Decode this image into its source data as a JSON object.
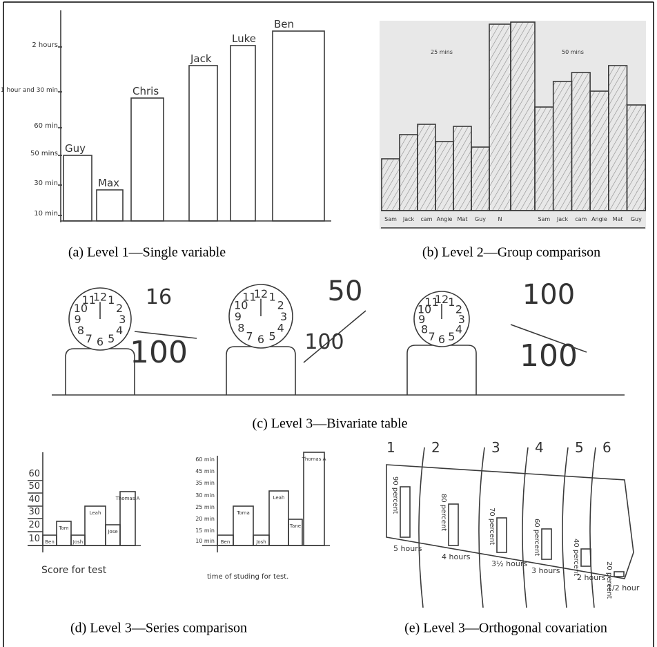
{
  "panels": [
    {
      "caption": "(a) Level 1—Single variable",
      "y_labels": [
        "2 hours",
        "1 hour and 30 min",
        "60 min",
        "50 mins",
        "30 min",
        "10 min"
      ],
      "bar_labels": [
        "Guy",
        "Max",
        "Chris",
        "Jack",
        "Luke",
        "Ben"
      ]
    },
    {
      "caption": "(b) Level 2—Group comparison",
      "group_labels": [
        "25 mins",
        "50 mins"
      ],
      "bar_labels": [
        "Sam",
        "Jack",
        "cam",
        "Angie",
        "Mat",
        "Guy",
        "N",
        "Sam",
        "Jack",
        "cam",
        "Angie",
        "Mat",
        "Guy"
      ]
    },
    {
      "caption": "(c) Level 3—Bivariate table",
      "clock_numbers": [
        "12",
        "1",
        "2",
        "3",
        "4",
        "5",
        "6",
        "7",
        "8",
        "9",
        "10",
        "11"
      ],
      "fractions": [
        {
          "numerator": "16",
          "denominator": "100"
        },
        {
          "numerator": "50",
          "denominator": "100"
        },
        {
          "numerator": "100",
          "denominator": "100"
        }
      ]
    },
    {
      "caption": "(d) Level 3—Series comparison",
      "charts": [
        {
          "y_labels": [
            "60",
            "50",
            "40",
            "30",
            "20",
            "10"
          ],
          "bar_labels": [
            "Ben",
            "Tom",
            "Josh",
            "Leah",
            "Jose",
            "Thomas A"
          ],
          "x_label": "Score for test"
        },
        {
          "y_labels": [
            "60 min",
            "45 min",
            "35 min",
            "30 min",
            "25 min",
            "20 min",
            "15 min",
            "10 min"
          ],
          "bar_labels": [
            "Ben",
            "Toma",
            "Josh",
            "Leah",
            "Tane",
            "Thomas A"
          ],
          "x_label": "time of studing for test."
        }
      ]
    },
    {
      "caption": "(e) Level 3—Orthogonal covariation",
      "columns": [
        "1",
        "2",
        "3",
        "4",
        "5",
        "6"
      ],
      "percents": [
        "90 percent",
        "80 percent",
        "70 percent",
        "60 percent",
        "40 percent",
        "20 percent"
      ],
      "hours": [
        "5 hours",
        "4 hours",
        "3½ hours",
        "3 hours",
        "2 hours",
        "1/2 hour"
      ]
    }
  ]
}
